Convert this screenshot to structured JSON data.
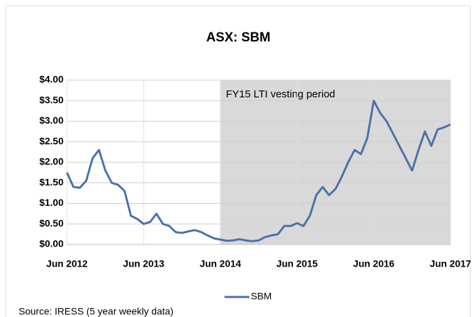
{
  "chart_data": {
    "type": "line",
    "title": "ASX: SBM",
    "x": [
      "2012-06",
      "2012-07",
      "2012-08",
      "2012-09",
      "2012-10",
      "2012-11",
      "2012-12",
      "2013-01",
      "2013-02",
      "2013-03",
      "2013-04",
      "2013-05",
      "2013-06",
      "2013-07",
      "2013-08",
      "2013-09",
      "2013-10",
      "2013-11",
      "2013-12",
      "2014-01",
      "2014-02",
      "2014-03",
      "2014-04",
      "2014-05",
      "2014-06",
      "2014-07",
      "2014-08",
      "2014-09",
      "2014-10",
      "2014-11",
      "2014-12",
      "2015-01",
      "2015-02",
      "2015-03",
      "2015-04",
      "2015-05",
      "2015-06",
      "2015-07",
      "2015-08",
      "2015-09",
      "2015-10",
      "2015-11",
      "2015-12",
      "2016-01",
      "2016-02",
      "2016-03",
      "2016-04",
      "2016-05",
      "2016-06",
      "2016-07",
      "2016-08",
      "2016-09",
      "2016-10",
      "2016-11",
      "2016-12",
      "2017-01",
      "2017-02",
      "2017-03",
      "2017-04",
      "2017-05",
      "2017-06"
    ],
    "series": [
      {
        "name": "SBM",
        "color": "#4a72a8",
        "values": [
          1.75,
          1.4,
          1.38,
          1.55,
          2.1,
          2.3,
          1.8,
          1.5,
          1.45,
          1.3,
          0.7,
          0.62,
          0.5,
          0.55,
          0.75,
          0.5,
          0.45,
          0.3,
          0.28,
          0.32,
          0.35,
          0.3,
          0.22,
          0.15,
          0.12,
          0.09,
          0.1,
          0.13,
          0.1,
          0.08,
          0.1,
          0.18,
          0.22,
          0.25,
          0.45,
          0.45,
          0.52,
          0.45,
          0.7,
          1.2,
          1.4,
          1.2,
          1.35,
          1.65,
          2.0,
          2.3,
          2.2,
          2.6,
          3.5,
          3.2,
          3.0,
          2.7,
          2.4,
          2.1,
          1.8,
          2.3,
          2.75,
          2.4,
          2.8,
          2.85,
          2.92
        ]
      }
    ],
    "xticks": [
      {
        "value": "2012-06",
        "label": "Jun 2012"
      },
      {
        "value": "2013-06",
        "label": "Jun 2013"
      },
      {
        "value": "2014-06",
        "label": "Jun 2014"
      },
      {
        "value": "2015-06",
        "label": "Jun 2015"
      },
      {
        "value": "2016-06",
        "label": "Jun 2016"
      },
      {
        "value": "2017-06",
        "label": "Jun 2017"
      }
    ],
    "ylim": [
      0,
      4
    ],
    "yticks": [
      {
        "value": 0,
        "label": "$0.00"
      },
      {
        "value": 0.5,
        "label": "$0.50"
      },
      {
        "value": 1,
        "label": "$1.00"
      },
      {
        "value": 1.5,
        "label": "$1.50"
      },
      {
        "value": 2,
        "label": "$2.00"
      },
      {
        "value": 2.5,
        "label": "$2.50"
      },
      {
        "value": 3,
        "label": "$3.00"
      },
      {
        "value": 3.5,
        "label": "$3.50"
      },
      {
        "value": 4,
        "label": "$4.00"
      }
    ],
    "grid": true,
    "shaded_region": {
      "label": "FY15 LTI vesting period",
      "start": "2014-06",
      "end": "2017-06",
      "color": "#d9d9d9"
    },
    "legend": "bottom",
    "source": "Source: IRESS (5 year weekly data)"
  }
}
